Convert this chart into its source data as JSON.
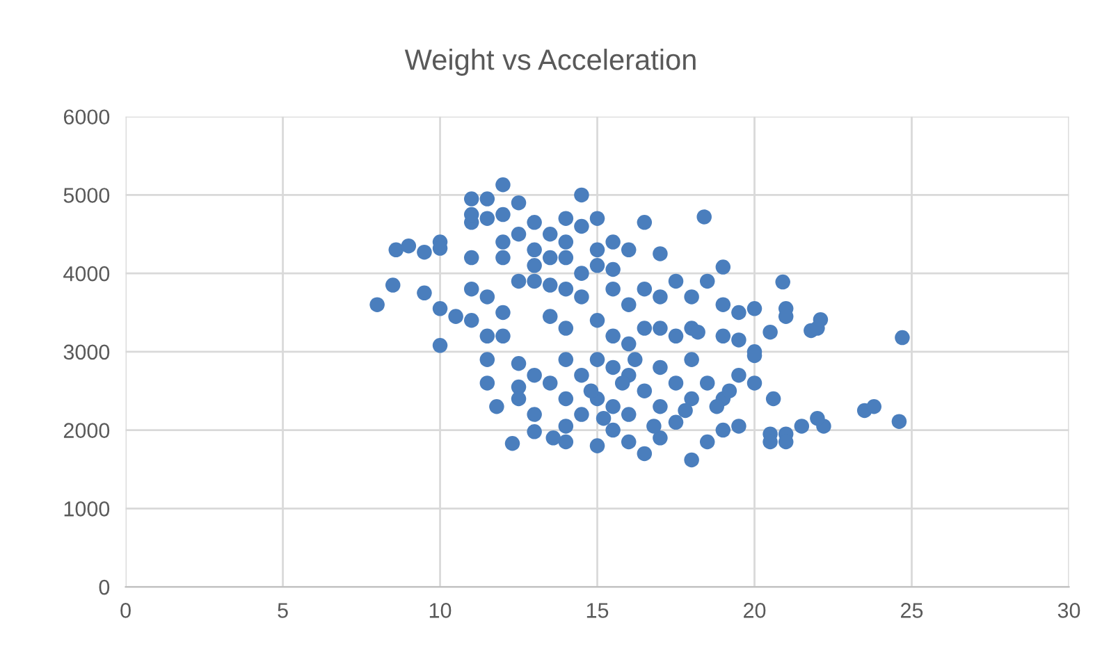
{
  "chart_data": {
    "type": "scatter",
    "title": "Weight vs Acceleration",
    "xlim": [
      0,
      30
    ],
    "xticks": [
      0,
      5,
      10,
      15,
      20,
      25,
      30
    ],
    "ylim": [
      0,
      6000
    ],
    "yticks": [
      0,
      1000,
      2000,
      3000,
      4000,
      5000,
      6000
    ],
    "grid": true,
    "marker": "circle",
    "series": [
      {
        "color": "#4a7ebd",
        "x": [
          8.0,
          8.5,
          8.6,
          9.0,
          9.5,
          9.5,
          10,
          10,
          10,
          10,
          10.5,
          11,
          11,
          11,
          11,
          11,
          11,
          11.5,
          11.5,
          11.5,
          11.5,
          11.5,
          11.5,
          11.8,
          12,
          12,
          12,
          12,
          12,
          12,
          12.3,
          12.5,
          12.5,
          12.5,
          12.5,
          12.5,
          12.5,
          13,
          13,
          13,
          13,
          13,
          13,
          13,
          13.5,
          13.5,
          13.5,
          13.5,
          13.5,
          14,
          14,
          14,
          14,
          14,
          14,
          14,
          14,
          14,
          14.5,
          14.5,
          14.5,
          14.5,
          14.5,
          14.5,
          15,
          15,
          15,
          15,
          15,
          15,
          15,
          15.5,
          15.5,
          15.5,
          15.5,
          15.5,
          15.5,
          15.5,
          16,
          16,
          16,
          16,
          16,
          16,
          16.5,
          16.5,
          16.5,
          16.5,
          16.5,
          17,
          17,
          17,
          17,
          17,
          17,
          17.5,
          17.5,
          17.5,
          17.5,
          18,
          18,
          18,
          18,
          18,
          18.4,
          18.5,
          18.5,
          18.5,
          19,
          19,
          19,
          19,
          19,
          19.5,
          19.5,
          19.5,
          19.5,
          20,
          20,
          20,
          20,
          20.5,
          20.5,
          20.5,
          20.9,
          21,
          21,
          21,
          21,
          21.5,
          21.8,
          22,
          22.1,
          22.2,
          22,
          20.6,
          23.5,
          23.8,
          24.6,
          24.7,
          19.2,
          18.2,
          16.2,
          15.8,
          14.8,
          15.2,
          16.8,
          17.8,
          18.8,
          13.6
        ],
        "values": [
          3600,
          3850,
          4300,
          4350,
          4270,
          3750,
          4400,
          4320,
          3550,
          3080,
          3450,
          3400,
          3800,
          4200,
          4650,
          4750,
          4950,
          4950,
          4700,
          3700,
          3200,
          2900,
          2600,
          2300,
          5130,
          4750,
          4400,
          4200,
          3500,
          3200,
          1830,
          4900,
          4500,
          3900,
          2850,
          2550,
          2400,
          4650,
          4300,
          4100,
          3900,
          2700,
          2200,
          1980,
          4500,
          4200,
          3850,
          3450,
          2600,
          4700,
          4400,
          4200,
          3800,
          3300,
          2900,
          2400,
          2050,
          1850,
          5000,
          4600,
          4000,
          3700,
          2700,
          2200,
          4700,
          4300,
          4100,
          3400,
          2900,
          2400,
          1800,
          4400,
          4050,
          3800,
          3200,
          2800,
          2300,
          2000,
          4300,
          3600,
          3100,
          2700,
          2200,
          1850,
          4650,
          3800,
          3300,
          2500,
          1700,
          4250,
          3700,
          3300,
          2800,
          2300,
          1900,
          3900,
          3200,
          2600,
          2100,
          3700,
          3300,
          2900,
          2400,
          1620,
          4720,
          3900,
          2600,
          1850,
          4080,
          3600,
          3200,
          2400,
          2000,
          3500,
          3150,
          2700,
          2050,
          3550,
          3000,
          2600,
          2950,
          3250,
          1950,
          1850,
          3890,
          3550,
          3450,
          1950,
          1850,
          2050,
          3270,
          3300,
          3410,
          2050,
          2150,
          2400,
          2250,
          2300,
          2110,
          3180,
          2500,
          3250,
          2900,
          2600,
          2500,
          2150,
          2050,
          2250,
          2300,
          1900
        ]
      }
    ]
  }
}
